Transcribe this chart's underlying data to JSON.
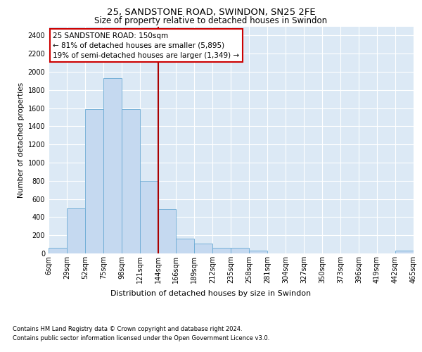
{
  "title1": "25, SANDSTONE ROAD, SWINDON, SN25 2FE",
  "title2": "Size of property relative to detached houses in Swindon",
  "xlabel": "Distribution of detached houses by size in Swindon",
  "ylabel": "Number of detached properties",
  "footer1": "Contains HM Land Registry data © Crown copyright and database right 2024.",
  "footer2": "Contains public sector information licensed under the Open Government Licence v3.0.",
  "annotation_title": "25 SANDSTONE ROAD: 150sqm",
  "annotation_line1": "← 81% of detached houses are smaller (5,895)",
  "annotation_line2": "19% of semi-detached houses are larger (1,349) →",
  "property_size": 150,
  "bin_edges": [
    6,
    29,
    52,
    75,
    98,
    121,
    144,
    166,
    189,
    212,
    235,
    258,
    281,
    304,
    327,
    350,
    373,
    396,
    419,
    442,
    465
  ],
  "bar_heights": [
    60,
    500,
    1590,
    1930,
    1590,
    800,
    490,
    165,
    110,
    60,
    60,
    30,
    0,
    0,
    0,
    0,
    0,
    0,
    0,
    30
  ],
  "bar_color": "#c5d9f0",
  "bar_edge_color": "#6aaad4",
  "vline_color": "#aa0000",
  "vline_x": 144,
  "ylim": [
    0,
    2500
  ],
  "yticks": [
    0,
    200,
    400,
    600,
    800,
    1000,
    1200,
    1400,
    1600,
    1800,
    2000,
    2200,
    2400
  ],
  "fig_bg_color": "#ffffff",
  "plot_bg_color": "#dce9f5",
  "grid_color": "#ffffff",
  "annotation_box_color": "#ffffff",
  "annotation_box_edge": "#cc0000",
  "title1_fontsize": 9.5,
  "title2_fontsize": 8.5,
  "ylabel_fontsize": 7.5,
  "xlabel_fontsize": 8,
  "footer_fontsize": 6,
  "tick_fontsize": 7,
  "ann_fontsize": 7.5
}
